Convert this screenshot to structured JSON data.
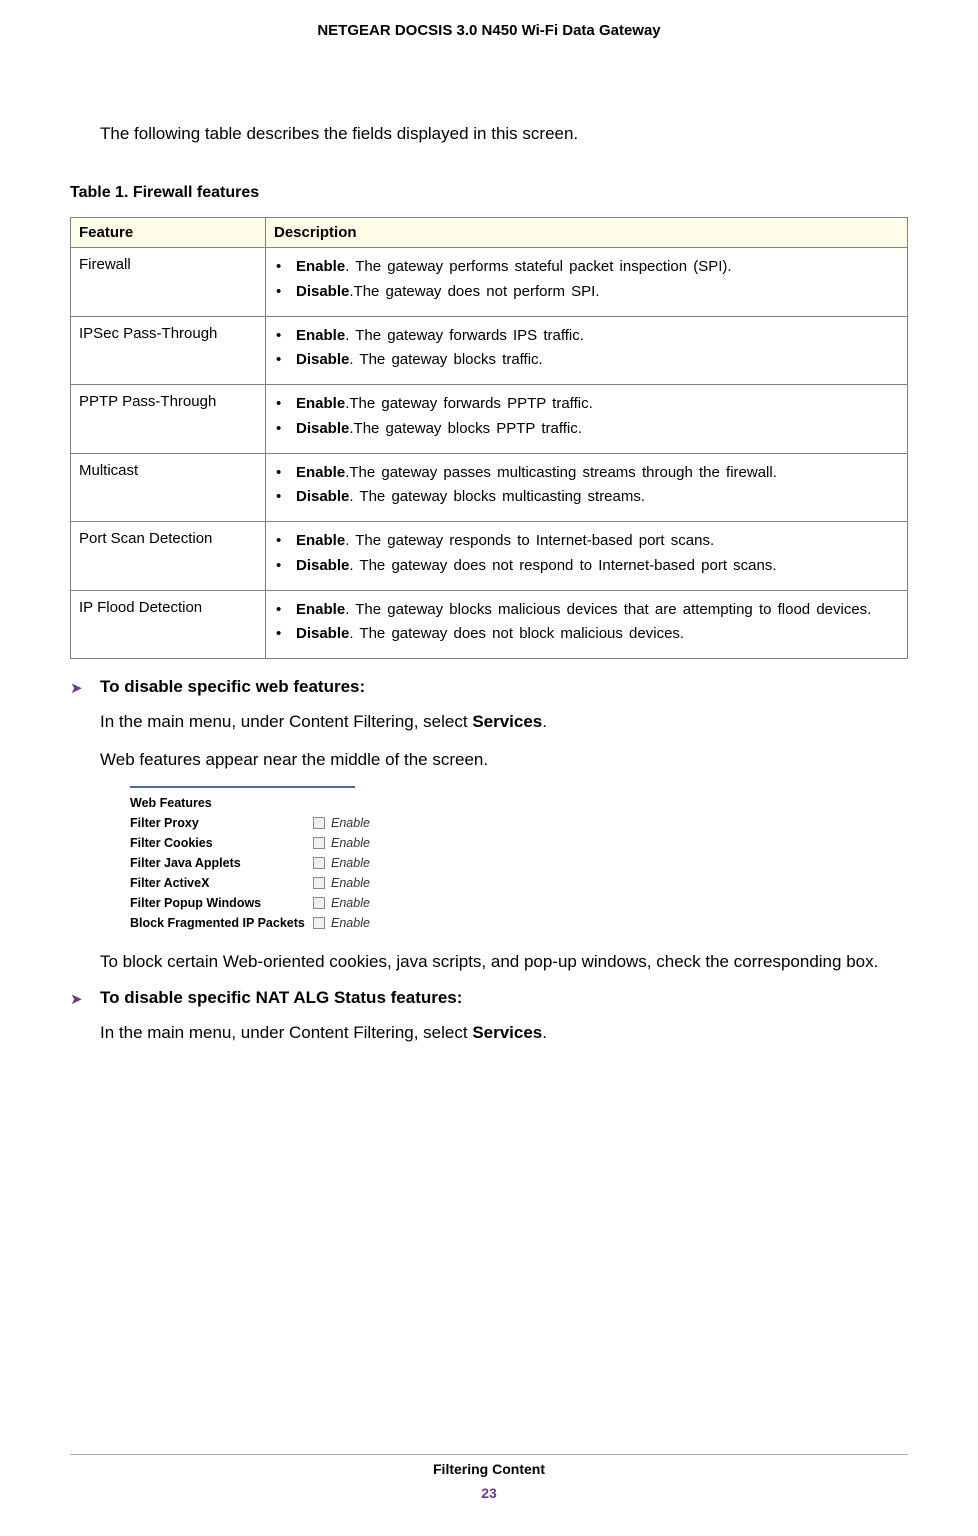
{
  "header": {
    "title": "NETGEAR DOCSIS 3.0 N450 Wi-Fi Data Gateway"
  },
  "intro": "The following table describes the fields displayed in this screen.",
  "table": {
    "caption": "Table 1.  Firewall features",
    "columns": [
      "Feature",
      "Description"
    ],
    "rows": [
      {
        "feature": "Firewall",
        "items": [
          {
            "bold": "Enable",
            "text": ". The gateway performs stateful packet inspection (SPI)."
          },
          {
            "bold": "Disable",
            "text": ".The gateway does not perform SPI."
          }
        ]
      },
      {
        "feature": "IPSec Pass-Through",
        "items": [
          {
            "bold": "Enable",
            "text": ". The gateway forwards IPS traffic."
          },
          {
            "bold": "Disable",
            "text": ". The gateway blocks traffic."
          }
        ]
      },
      {
        "feature": "PPTP Pass-Through",
        "items": [
          {
            "bold": "Enable",
            "text": ".The gateway forwards PPTP traffic."
          },
          {
            "bold": "Disable",
            "text": ".The gateway blocks PPTP traffic."
          }
        ]
      },
      {
        "feature": "Multicast",
        "items": [
          {
            "bold": "Enable",
            "text": ".The gateway passes multicasting streams through the firewall."
          },
          {
            "bold": "Disable",
            "text": ". The gateway blocks multicasting streams."
          }
        ]
      },
      {
        "feature": "Port Scan Detection",
        "items": [
          {
            "bold": "Enable",
            "text": ". The gateway responds to Internet-based port scans."
          },
          {
            "bold": "Disable",
            "text": ". The gateway does not respond to Internet-based port scans."
          }
        ]
      },
      {
        "feature": "IP Flood Detection",
        "items": [
          {
            "bold": "Enable",
            "text": ". The gateway blocks malicious devices that are attempting to flood devices."
          },
          {
            "bold": "Disable",
            "text": ". The gateway does not block malicious devices."
          }
        ]
      }
    ]
  },
  "proc1": {
    "title": "To disable specific web features:",
    "step1a": "In the main menu, under Content Filtering, select ",
    "step1b": "Services",
    "step1c": ".",
    "step2": "Web features appear near the middle of the screen.",
    "step3": "To block certain Web-oriented cookies, java scripts, and pop-up windows, check the corresponding box."
  },
  "webfeatures": {
    "title": "Web Features",
    "enable": "Enable",
    "rows": [
      "Filter Proxy",
      "Filter Cookies",
      "Filter Java Applets",
      "Filter ActiveX",
      "Filter Popup Windows",
      "Block Fragmented IP Packets"
    ]
  },
  "proc2": {
    "title": "To disable specific NAT ALG Status features:",
    "step1a": "In the main menu, under Content Filtering, select ",
    "step1b": "Services",
    "step1c": "."
  },
  "footer": {
    "section": "Filtering Content",
    "page": "23"
  },
  "colors": {
    "arrow": "#6a3b8f",
    "page_number": "#6a3b8f",
    "table_header_bg": "#fdfde8",
    "table_border": "#808080"
  }
}
